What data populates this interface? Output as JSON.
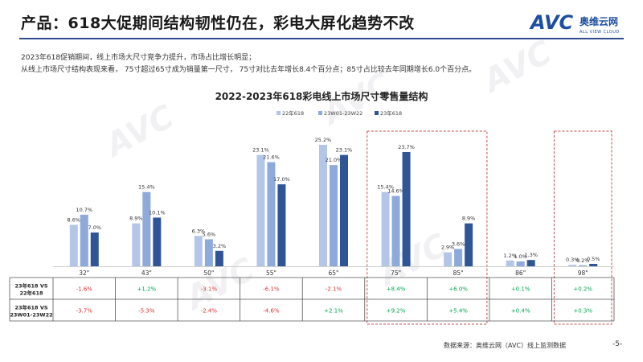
{
  "title": "产品：618大促期间结构韧性仍在，彩电大屏化趋势不改",
  "logo": {
    "mark": "AVC",
    "name_cn": "奥维云网",
    "sub": "ALL VIEW CLOUD"
  },
  "notes": [
    "2023年618促销期间，线上市场大尺寸竞争力提升，市场占比增长明显；",
    "从线上市场尺寸结构表现来看，  75寸超过65寸成为销量第一尺寸，  75寸对比去年增长8.4个百分点；85寸占比较去年同期增长6.0个百分点。"
  ],
  "source": "数据来源：奥维云网（AVC）线上监测数据",
  "page_number": "-5-",
  "watermark": "AVC",
  "colors": {
    "series1": "#b4c6e7",
    "series2": "#8eaadb",
    "series3": "#2f5597",
    "rule": "#2e4a8c",
    "positive": "#00a650",
    "negative": "#e03030",
    "highlight": "#c0504d"
  },
  "chart_data": {
    "type": "bar",
    "title": "2022-2023年618彩电线上市场尺寸零售量结构",
    "categories": [
      "32\"",
      "43\"",
      "50\"",
      "55\"",
      "65\"",
      "75\"",
      "85\"",
      "86\"",
      "98\""
    ],
    "series": [
      {
        "name": "22年618",
        "values": [
          8.6,
          8.9,
          6.3,
          23.1,
          25.2,
          15.4,
          2.9,
          1.2,
          0.3
        ]
      },
      {
        "name": "23W01-23W22",
        "values": [
          10.7,
          15.4,
          5.6,
          21.6,
          21.0,
          14.6,
          3.6,
          1.0,
          0.2
        ]
      },
      {
        "name": "23年618",
        "values": [
          7.0,
          10.1,
          3.2,
          17.0,
          23.1,
          23.7,
          8.9,
          1.3,
          0.5
        ]
      }
    ],
    "value_labels": [
      [
        "8.6%",
        "8.9%",
        "6.3%",
        "23.1%",
        "25.2%",
        "15.4%",
        "2.9%",
        "1.2%",
        "0.3%"
      ],
      [
        "10.7%",
        "15.4%",
        "5.6%",
        "21.6%",
        "21.0%",
        "14.6%",
        "3.6%",
        "1.0%",
        "0.2%"
      ],
      [
        "7.0%",
        "10.1%",
        "3.2%",
        "17.0%",
        "23.1%",
        "23.7%",
        "8.9%",
        "1.3%",
        "0.5%"
      ]
    ],
    "unit": "%",
    "legend_position": "top-center",
    "highlighted_categories": [
      "75\"",
      "85\"",
      "98\""
    ],
    "table": {
      "rows": [
        {
          "label": [
            "23年618 VS",
            "22年618"
          ],
          "values": [
            "-1.6%",
            "+1.2%",
            "-3.1%",
            "-6.1%",
            "-2.1%",
            "+8.4%",
            "+6.0%",
            "+0.1%",
            "+0.2%"
          ]
        },
        {
          "label": [
            "23年618 VS",
            "23W01-23W22"
          ],
          "values": [
            "-3.7%",
            "-5.3%",
            "-2.4%",
            "-4.6%",
            "+2.1%",
            "+9.2%",
            "+5.4%",
            "+0.4%",
            "+0.3%"
          ]
        }
      ]
    }
  }
}
